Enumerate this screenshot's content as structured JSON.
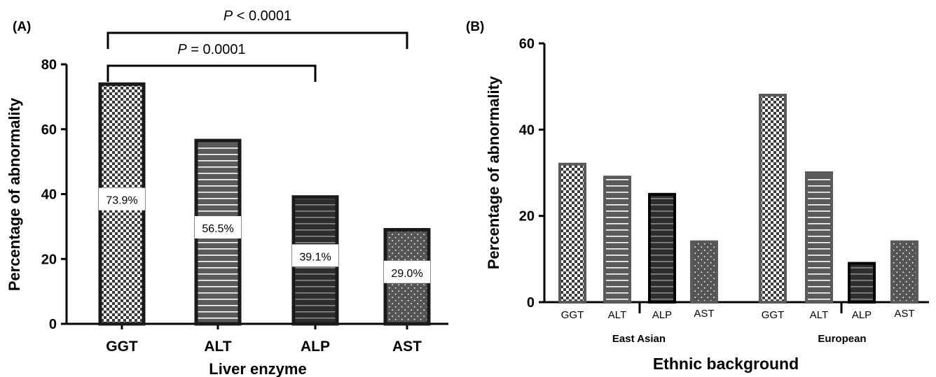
{
  "colors": {
    "ink": "#000000",
    "darkbar": "#333333",
    "midbar": "#5a5a5a",
    "white": "#ffffff"
  },
  "chart_data": [
    {
      "panel_label": "(A)",
      "type": "bar",
      "xlabel": "Liver enzyme",
      "ylabel": "Percentage of abnormality",
      "ylim": [
        0,
        80
      ],
      "yticks": [
        0,
        20,
        40,
        60,
        80
      ],
      "grid": false,
      "categories": [
        "GGT",
        "ALT",
        "ALP",
        "AST"
      ],
      "values": [
        73.9,
        56.5,
        39.1,
        29.0
      ],
      "data_labels": [
        "73.9%",
        "56.5%",
        "39.1%",
        "29.0%"
      ],
      "patterns": [
        "checker",
        "stripes",
        "stripes-dark",
        "dots"
      ],
      "significance": [
        {
          "from": "GGT",
          "to": "AST",
          "p_symbol": "P",
          "p_text": "< 0.0001"
        },
        {
          "from": "GGT",
          "to": "ALP",
          "p_symbol": "P",
          "p_text": "= 0.0001"
        }
      ]
    },
    {
      "panel_label": "(B)",
      "type": "bar",
      "xlabel": "Ethnic background",
      "ylabel": "Percentage of abnormality",
      "ylim": [
        0,
        60
      ],
      "yticks": [
        0,
        20,
        40,
        60
      ],
      "grid": false,
      "groups": [
        "East Asian",
        "European"
      ],
      "categories": [
        "GGT",
        "ALT",
        "ALP",
        "AST"
      ],
      "values": [
        [
          32,
          29,
          25,
          14
        ],
        [
          48,
          30,
          9,
          14
        ]
      ],
      "patterns": [
        "checker",
        "stripes",
        "stripes-dark",
        "dots"
      ]
    }
  ]
}
